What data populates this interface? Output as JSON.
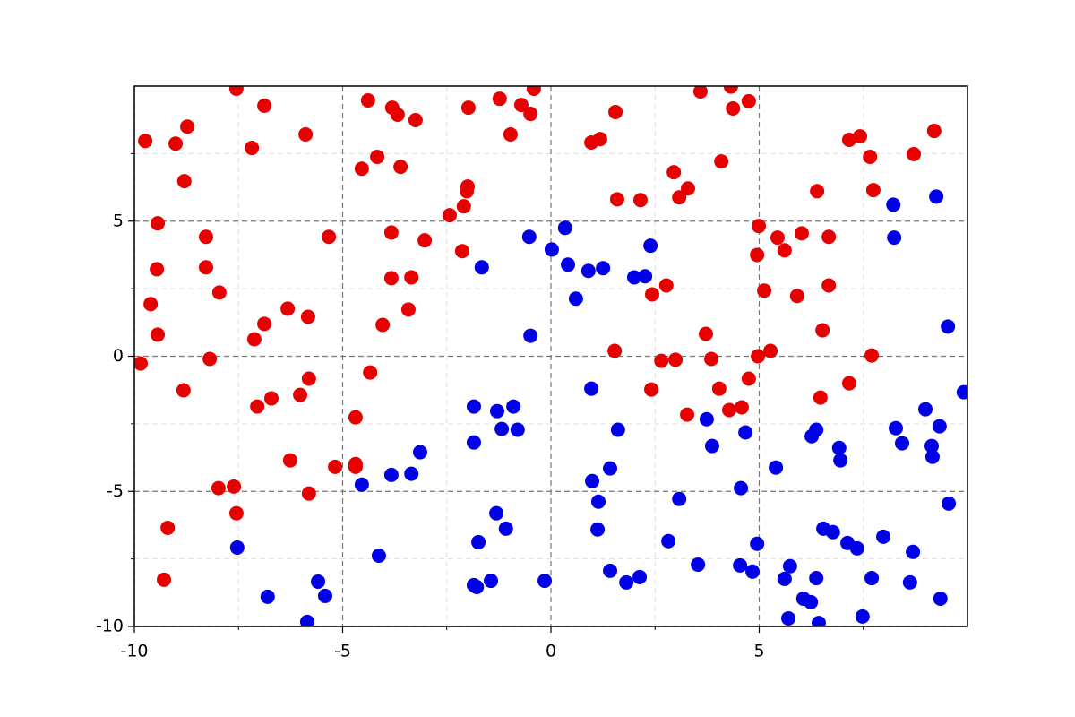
{
  "chart_data": {
    "type": "scatter",
    "xlim": [
      -10,
      10
    ],
    "ylim": [
      -10,
      10
    ],
    "xticks": [
      -10,
      -5,
      0,
      5
    ],
    "yticks": [
      -10,
      -5,
      0,
      5
    ],
    "xminorticks": [
      -7.5,
      -2.5,
      2.5,
      7.5
    ],
    "yminorticks": [
      -7.5,
      -2.5,
      2.5,
      7.5
    ],
    "grid": true,
    "minor_grid": true,
    "series": [
      {
        "color": "#e60000",
        "x": [
          -9.85,
          -9.74,
          -9.61,
          -9.44,
          -9.46,
          -9.44,
          -9.2,
          -9.29,
          -9.01,
          -8.82,
          -8.8,
          -8.73,
          -8.28,
          -8.28,
          -8.19,
          -7.96,
          -7.98,
          -7.61,
          -7.55,
          -7.55,
          -7.18,
          -7.12,
          -7.05,
          -6.88,
          -6.88,
          -6.71,
          -6.32,
          -6.26,
          -6.02,
          -5.89,
          -5.83,
          -5.81,
          -5.81,
          -5.33,
          -5.18,
          -4.69,
          -4.69,
          -4.69,
          -4.54,
          -4.39,
          -4.34,
          -4.17,
          -4.04,
          -3.83,
          -3.83,
          -3.81,
          -3.68,
          -3.61,
          -3.42,
          -3.35,
          -3.25,
          -3.03,
          -2.43,
          -2.13,
          -2.09,
          -2.02,
          -2.0,
          -1.98,
          -1.23,
          -0.97,
          -0.71,
          -0.49,
          -0.41,
          0.97,
          1.18,
          1.55,
          1.53,
          1.59,
          2.15,
          2.41,
          2.43,
          2.65,
          2.77,
          2.95,
          2.99,
          3.08,
          3.29,
          3.27,
          3.59,
          3.72,
          3.85,
          4.04,
          4.09,
          4.28,
          4.32,
          4.37,
          4.58,
          4.75,
          4.75,
          4.95,
          4.97,
          4.99,
          5.12,
          5.27,
          5.44,
          5.61,
          5.91,
          6.02,
          6.39,
          6.47,
          6.52,
          6.67,
          6.67,
          7.16,
          7.16,
          7.42,
          7.66,
          7.7,
          7.74,
          8.71,
          9.2
        ],
        "values": [
          -0.27,
          7.97,
          1.93,
          0.8,
          3.22,
          4.92,
          -6.35,
          -8.27,
          7.87,
          -1.26,
          6.48,
          8.5,
          4.42,
          3.29,
          -0.1,
          2.36,
          -4.88,
          -4.82,
          9.9,
          -5.81,
          7.71,
          0.63,
          -1.86,
          9.27,
          1.2,
          -1.56,
          1.76,
          -3.85,
          -1.43,
          8.21,
          1.46,
          -0.83,
          -5.08,
          4.42,
          -4.09,
          -2.26,
          -3.99,
          -4.09,
          6.94,
          9.47,
          -0.6,
          7.38,
          1.16,
          4.58,
          2.89,
          9.2,
          8.94,
          7.01,
          1.73,
          2.92,
          8.74,
          4.29,
          5.22,
          3.89,
          5.55,
          6.11,
          6.28,
          9.2,
          9.53,
          8.21,
          9.3,
          8.97,
          9.9,
          7.91,
          8.04,
          9.04,
          0.2,
          5.81,
          5.78,
          -1.23,
          2.29,
          -0.17,
          2.62,
          6.81,
          -0.13,
          5.88,
          6.21,
          -2.16,
          9.8,
          0.83,
          -0.1,
          -1.2,
          7.21,
          -1.99,
          9.98,
          9.17,
          -1.89,
          -0.83,
          9.44,
          3.75,
          0,
          4.82,
          2.43,
          0.2,
          4.39,
          3.92,
          2.23,
          4.55,
          6.11,
          -1.53,
          0.96,
          2.62,
          4.42,
          -1.0,
          8.01,
          8.14,
          7.38,
          0.03,
          6.15,
          7.48,
          8.34
        ]
      },
      {
        "color": "#0000e6",
        "x": [
          -7.53,
          -6.8,
          -5.85,
          -5.59,
          -5.42,
          -4.54,
          -4.13,
          -3.83,
          -3.35,
          -3.14,
          -1.85,
          -1.85,
          -1.74,
          -1.85,
          -1.78,
          -1.66,
          -1.44,
          -1.29,
          -1.31,
          -1.18,
          -1.08,
          -0.9,
          -0.8,
          -0.52,
          -0.49,
          -0.15,
          0.02,
          0.34,
          0.41,
          0.6,
          0.9,
          0.97,
          0.99,
          1.12,
          1.14,
          1.25,
          1.42,
          1.42,
          1.61,
          1.81,
          2.0,
          2.13,
          2.26,
          2.39,
          2.82,
          3.08,
          3.53,
          3.74,
          3.87,
          4.54,
          4.56,
          4.67,
          4.84,
          4.95,
          5.4,
          5.61,
          5.74,
          5.7,
          6.06,
          6.24,
          6.26,
          6.37,
          6.37,
          6.43,
          6.54,
          6.77,
          6.92,
          6.95,
          7.12,
          7.35,
          7.48,
          7.7,
          7.98,
          8.22,
          8.24,
          8.28,
          8.43,
          8.62,
          8.69,
          8.99,
          9.14,
          9.16,
          9.25,
          9.33,
          9.35,
          9.53,
          9.55,
          9.91
        ],
        "values": [
          -7.08,
          -8.9,
          -9.83,
          -8.34,
          -8.87,
          -4.75,
          -7.38,
          -4.39,
          -4.35,
          -3.55,
          -1.86,
          -3.19,
          -6.88,
          -8.47,
          -8.54,
          3.29,
          -8.31,
          -2.03,
          -5.81,
          -2.69,
          -6.38,
          -1.86,
          -2.72,
          4.42,
          0.76,
          -8.31,
          3.95,
          4.75,
          3.39,
          2.13,
          3.16,
          -1.2,
          -4.62,
          -6.41,
          -5.38,
          3.26,
          -4.15,
          -7.94,
          -2.72,
          -8.37,
          2.92,
          -8.17,
          2.96,
          4.09,
          -6.84,
          -5.28,
          -7.71,
          -2.33,
          -3.32,
          -7.74,
          -4.88,
          -2.82,
          -7.97,
          -6.94,
          -4.12,
          -8.24,
          -7.77,
          -9.7,
          -8.97,
          -9.1,
          -2.96,
          -2.72,
          -8.21,
          -9.87,
          -6.38,
          -6.51,
          -3.39,
          -3.85,
          -6.91,
          -7.11,
          -9.63,
          -8.21,
          -6.68,
          5.61,
          4.39,
          -2.66,
          -3.22,
          -8.37,
          -7.24,
          -1.96,
          -3.32,
          -3.72,
          5.91,
          -2.59,
          -8.97,
          1.1,
          -5.45,
          -1.33
        ]
      }
    ]
  }
}
